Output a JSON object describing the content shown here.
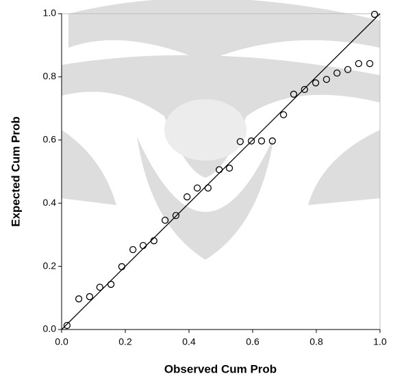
{
  "chart_data": {
    "type": "scatter",
    "xlabel": "Observed Cum Prob",
    "ylabel": "Expected Cum Prob",
    "x": [
      0.017,
      0.054,
      0.088,
      0.12,
      0.155,
      0.189,
      0.224,
      0.256,
      0.29,
      0.325,
      0.359,
      0.394,
      0.426,
      0.46,
      0.495,
      0.527,
      0.561,
      0.596,
      0.628,
      0.662,
      0.697,
      0.729,
      0.763,
      0.798,
      0.832,
      0.865,
      0.899,
      0.933,
      0.968,
      0.983
    ],
    "values": [
      0.013,
      0.097,
      0.104,
      0.134,
      0.143,
      0.199,
      0.253,
      0.266,
      0.281,
      0.346,
      0.361,
      0.42,
      0.448,
      0.448,
      0.506,
      0.511,
      0.595,
      0.597,
      0.597,
      0.597,
      0.68,
      0.745,
      0.76,
      0.781,
      0.792,
      0.812,
      0.823,
      0.842,
      0.842,
      0.998
    ],
    "color": "#000000",
    "xlim": [
      0,
      1
    ],
    "ylim": [
      0,
      1
    ],
    "xticks": [
      {
        "value": 0,
        "label": "0.0"
      },
      0.2,
      0.4,
      0.6,
      0.8,
      {
        "value": 1,
        "label": "1.0"
      }
    ],
    "yticks": [
      {
        "value": 0,
        "label": "0.0"
      },
      0.2,
      0.4,
      0.6,
      0.8,
      {
        "value": 1,
        "label": "1.0"
      }
    ],
    "reference_line": true
  }
}
